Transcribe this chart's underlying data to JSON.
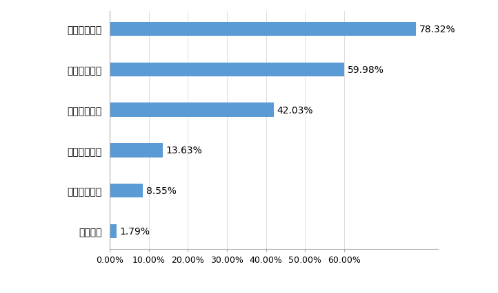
{
  "categories": [
    "客服培训",
    "车辆维修培训",
    "没有得到培训",
    "驾驶技术培训",
    "交通法规培训",
    "交通安全培训"
  ],
  "values": [
    1.79,
    8.55,
    13.63,
    42.03,
    59.98,
    78.32
  ],
  "bar_color": "#5b9bd5",
  "value_labels": [
    "1.79%",
    "8.55%",
    "13.63%",
    "42.03%",
    "59.98%",
    "78.32%"
  ],
  "xlim": [
    0,
    84
  ],
  "xticks": [
    0,
    10,
    20,
    30,
    40,
    50,
    60
  ],
  "xtick_labels": [
    "0.00%",
    "10.00%",
    "20.00%",
    "30.00%",
    "40.00%",
    "50.00%",
    "60.00%"
  ],
  "background_color": "#ffffff",
  "bar_height": 0.35,
  "label_fontsize": 10,
  "tick_fontsize": 9,
  "outer_bg": "#e8e8e8"
}
